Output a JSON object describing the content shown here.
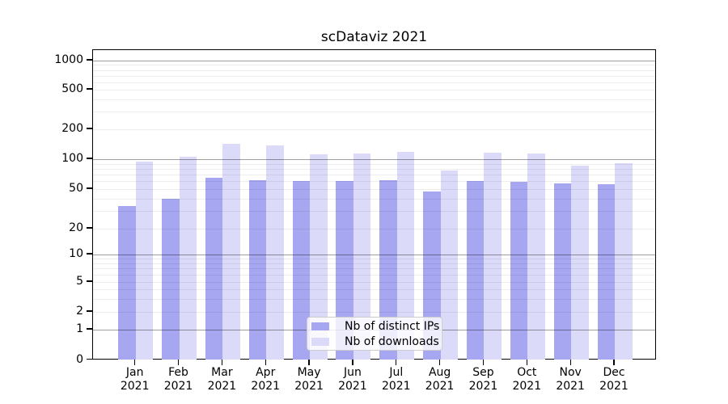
{
  "chart_data": {
    "type": "bar",
    "title": "scDataviz 2021",
    "categories": [
      "Jan 2021",
      "Feb 2021",
      "Mar 2021",
      "Apr 2021",
      "May 2021",
      "Jun 2021",
      "Jul 2021",
      "Aug 2021",
      "Sep 2021",
      "Oct 2021",
      "Nov 2021",
      "Dec 2021"
    ],
    "series": [
      {
        "name": "Nb of distinct IPs",
        "color": "#a6a6f1",
        "values": [
          34,
          40,
          65,
          62,
          60,
          60,
          61,
          47,
          60,
          59,
          57,
          56
        ]
      },
      {
        "name": "Nb of downloads",
        "color": "#dbdbf9",
        "values": [
          95,
          105,
          142,
          138,
          111,
          113,
          118,
          77,
          117,
          115,
          86,
          91
        ]
      }
    ],
    "xlabel": "",
    "ylabel": "",
    "yscale": "symlog",
    "y_ticks": [
      0,
      1,
      2,
      5,
      10,
      20,
      50,
      100,
      200,
      500,
      1000
    ],
    "ylim": [
      0,
      1400
    ],
    "grid": true,
    "legend_position": "lower center"
  }
}
